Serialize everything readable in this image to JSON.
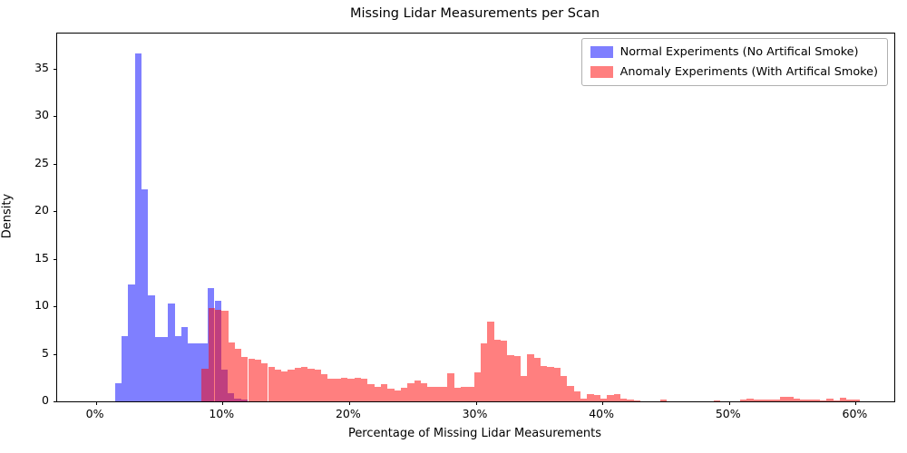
{
  "figure": {
    "title": "Missing Lidar Measurements per Scan",
    "xlabel": "Percentage of Missing Lidar Measurements",
    "ylabel": "Density"
  },
  "chart_data": {
    "type": "bar",
    "subtype": "overlapping-density-histograms",
    "title": "Missing Lidar Measurements per Scan",
    "xlabel": "Percentage of Missing Lidar Measurements",
    "ylabel": "Density",
    "grid": false,
    "legend_position": "upper right",
    "x_axis": {
      "tick_labels": [
        "0%",
        "10%",
        "20%",
        "30%",
        "40%",
        "50%",
        "60%"
      ],
      "tick_values": [
        0,
        10,
        20,
        30,
        40,
        50,
        60
      ],
      "range_pct": [
        -3.05,
        63.05
      ]
    },
    "y_axis": {
      "tick_values": [
        0,
        5,
        10,
        15,
        20,
        25,
        30,
        35
      ],
      "range": [
        0,
        38.7
      ]
    },
    "series": [
      {
        "name": "Normal Experiments (No Artifical Smoke)",
        "color": "rgba(0,0,255,0.5)",
        "solid_color_on_white": "#7f7fff",
        "bin_start_pct": 1.5,
        "bin_width_pct": 0.525,
        "densities": [
          1.9,
          6.9,
          12.3,
          36.6,
          22.3,
          11.2,
          6.8,
          6.8,
          10.3,
          6.9,
          7.8,
          6.1,
          6.1,
          6.1,
          11.9,
          10.6,
          3.3,
          0.9,
          0.3,
          0.15
        ]
      },
      {
        "name": "Anomaly Experiments (With Artifical Smoke)",
        "color": "rgba(255,0,0,0.5)",
        "solid_color_on_white": "#ff7f7f",
        "bin_start_pct": 8.35,
        "bin_width_pct": 0.525,
        "densities": [
          3.4,
          9.8,
          9.6,
          9.5,
          6.2,
          5.5,
          4.7,
          4.5,
          4.4,
          4.0,
          3.6,
          3.3,
          3.1,
          3.3,
          3.5,
          3.6,
          3.4,
          3.3,
          2.9,
          2.4,
          2.4,
          2.5,
          2.4,
          2.5,
          2.4,
          1.8,
          1.5,
          1.85,
          1.35,
          1.15,
          1.45,
          1.9,
          2.15,
          1.9,
          1.5,
          1.5,
          1.5,
          3.0,
          1.4,
          1.5,
          1.5,
          3.05,
          6.1,
          8.35,
          6.5,
          6.4,
          4.85,
          4.8,
          2.7,
          5.0,
          4.6,
          3.7,
          3.6,
          3.5,
          2.7,
          1.6,
          1.05,
          0.3,
          0.75,
          0.65,
          0.3,
          0.65,
          0.8,
          0.25,
          0.15,
          0.1,
          0,
          0,
          0,
          0.15,
          0,
          0,
          0,
          0,
          0,
          0,
          0,
          0.1,
          0,
          0,
          0,
          0.2,
          0.25,
          0.2,
          0.2,
          0.2,
          0.2,
          0.5,
          0.5,
          0.25,
          0.15,
          0.15,
          0.15,
          0.1,
          0.25,
          0.1,
          0.4,
          0.15,
          0.2
        ]
      }
    ],
    "overlap_blend_color": "#bf3f7f"
  },
  "legend": {
    "items": [
      {
        "label": "Normal Experiments (No Artifical Smoke)"
      },
      {
        "label": "Anomaly Experiments (With Artifical Smoke)"
      }
    ]
  }
}
